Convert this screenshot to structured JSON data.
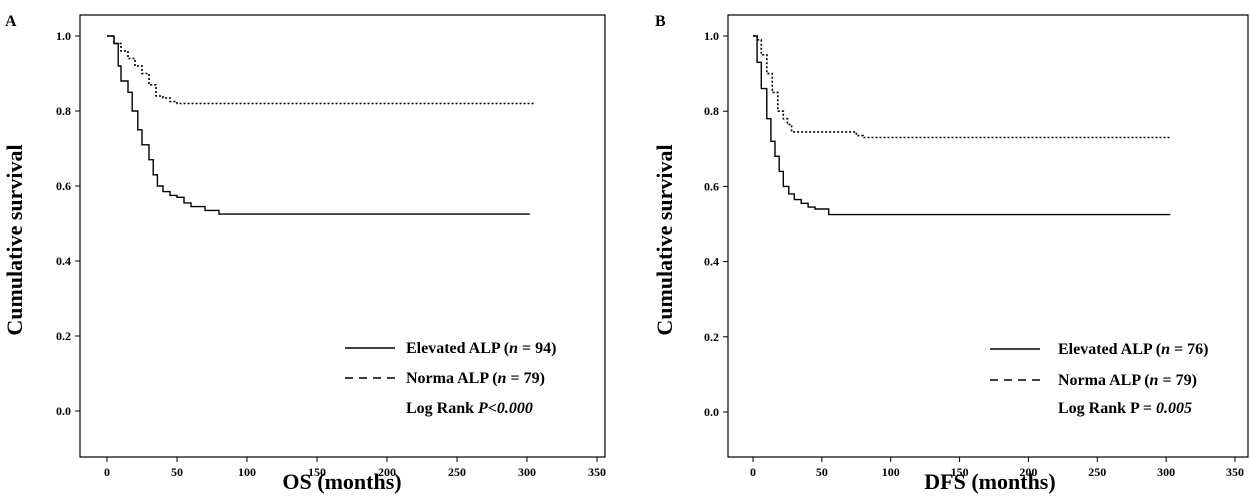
{
  "chart_data": [
    {
      "type": "line",
      "panel_label": "A",
      "xlabel": "OS (months)",
      "ylabel": "Cumulative survival",
      "xlim": [
        0,
        350
      ],
      "ylim": [
        0,
        1.0
      ],
      "xticks": [
        "0",
        "50",
        "100",
        "150",
        "200",
        "250",
        "300",
        "350"
      ],
      "yticks": [
        "0.0",
        "0.2",
        "0.4",
        "0.6",
        "0.8",
        "1.0"
      ],
      "legend_position": "bottom-right",
      "series": [
        {
          "name": "Elevated ALP",
          "n_label": "n",
          "n_value": "= 94)",
          "style": "solid",
          "points": [
            [
              0,
              1.0
            ],
            [
              5,
              0.98
            ],
            [
              8,
              0.92
            ],
            [
              10,
              0.88
            ],
            [
              15,
              0.85
            ],
            [
              18,
              0.8
            ],
            [
              22,
              0.75
            ],
            [
              25,
              0.71
            ],
            [
              30,
              0.67
            ],
            [
              33,
              0.63
            ],
            [
              36,
              0.6
            ],
            [
              40,
              0.585
            ],
            [
              45,
              0.575
            ],
            [
              50,
              0.57
            ],
            [
              55,
              0.555
            ],
            [
              60,
              0.545
            ],
            [
              70,
              0.535
            ],
            [
              80,
              0.525
            ],
            [
              302,
              0.525
            ]
          ]
        },
        {
          "name": "Norma ALP",
          "n_label": "n",
          "n_value": "= 79)",
          "style": "dotted",
          "points": [
            [
              0,
              1.0
            ],
            [
              5,
              0.98
            ],
            [
              10,
              0.96
            ],
            [
              15,
              0.94
            ],
            [
              20,
              0.92
            ],
            [
              25,
              0.9
            ],
            [
              30,
              0.87
            ],
            [
              35,
              0.84
            ],
            [
              40,
              0.835
            ],
            [
              45,
              0.825
            ],
            [
              50,
              0.82
            ],
            [
              305,
              0.82
            ]
          ]
        }
      ],
      "annotation_prefix": "Log Rank ",
      "annotation_value": "P<0.000"
    },
    {
      "type": "line",
      "panel_label": "B",
      "xlabel": "DFS (months)",
      "ylabel": "Cumulative survival",
      "xlim": [
        0,
        350
      ],
      "ylim": [
        0,
        1.0
      ],
      "xticks": [
        "0",
        "50",
        "100",
        "150",
        "200",
        "250",
        "300",
        "350"
      ],
      "yticks": [
        "0.0",
        "0.2",
        "0.4",
        "0.6",
        "0.8",
        "1.0"
      ],
      "legend_position": "bottom-right",
      "series": [
        {
          "name": "Elevated ALP",
          "n_label": "n",
          "n_value": "= 76)",
          "style": "solid",
          "points": [
            [
              0,
              1.0
            ],
            [
              3,
              0.93
            ],
            [
              6,
              0.86
            ],
            [
              10,
              0.78
            ],
            [
              13,
              0.72
            ],
            [
              16,
              0.68
            ],
            [
              19,
              0.64
            ],
            [
              22,
              0.6
            ],
            [
              26,
              0.58
            ],
            [
              30,
              0.565
            ],
            [
              35,
              0.555
            ],
            [
              40,
              0.545
            ],
            [
              45,
              0.54
            ],
            [
              55,
              0.525
            ],
            [
              303,
              0.525
            ]
          ]
        },
        {
          "name": "Norma ALP",
          "n_label": "n",
          "n_value": "= 79)",
          "style": "dotted",
          "points": [
            [
              0,
              1.0
            ],
            [
              3,
              0.99
            ],
            [
              6,
              0.95
            ],
            [
              10,
              0.9
            ],
            [
              14,
              0.85
            ],
            [
              18,
              0.8
            ],
            [
              22,
              0.78
            ],
            [
              25,
              0.765
            ],
            [
              28,
              0.745
            ],
            [
              70,
              0.745
            ],
            [
              75,
              0.735
            ],
            [
              80,
              0.73
            ],
            [
              303,
              0.73
            ]
          ]
        }
      ],
      "annotation_prefix": "Log Rank ",
      "annotation_eq": "P = ",
      "annotation_value": "0.005"
    }
  ]
}
